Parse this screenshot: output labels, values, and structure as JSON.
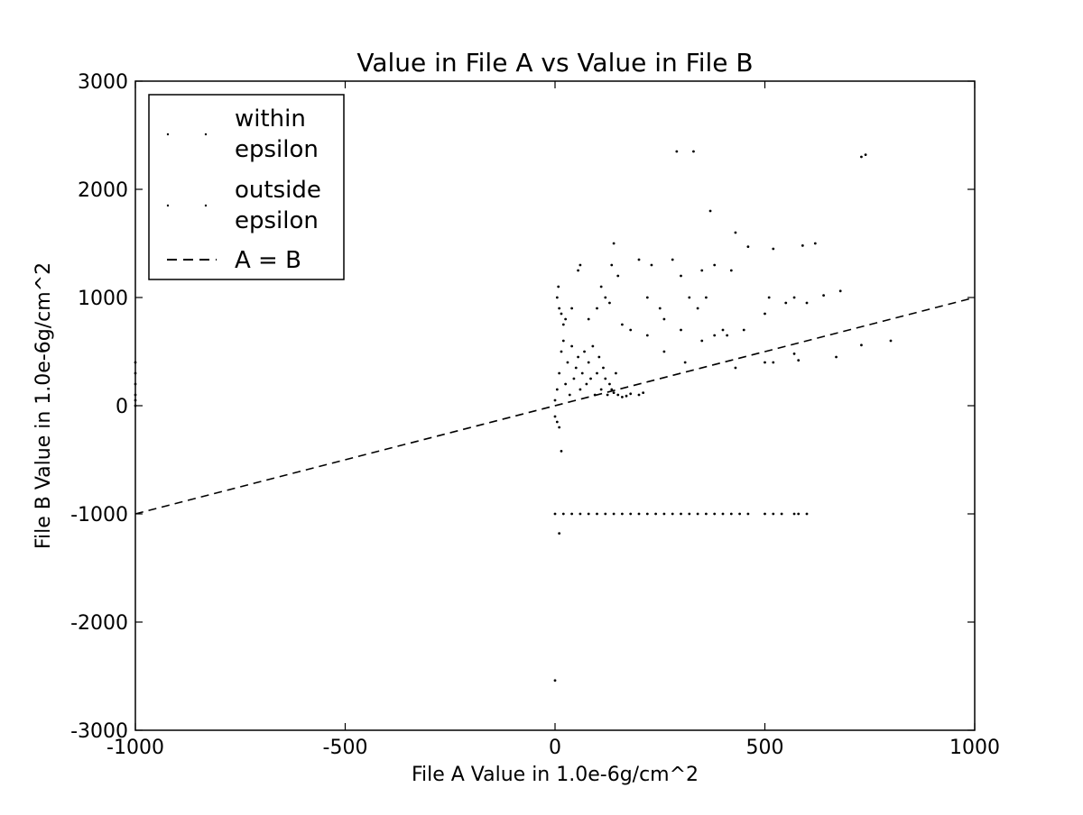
{
  "colors": {
    "marker": "#000000",
    "line": "#000000",
    "frame": "#000000",
    "background": "#ffffff"
  },
  "chart_data": {
    "type": "scatter",
    "title": "Value in File A vs Value in File B",
    "xlabel": "File A Value in 1.0e-6g/cm^2",
    "ylabel": "File B Value in 1.0e-6g/cm^2",
    "xlim": [
      -1000,
      1000
    ],
    "ylim": [
      -3000,
      3000
    ],
    "x_ticks": [
      -1000,
      -500,
      0,
      500,
      1000
    ],
    "y_ticks": [
      -3000,
      -2000,
      -1000,
      0,
      1000,
      2000,
      3000
    ],
    "grid": false,
    "legend_position": "top-left",
    "legend": [
      {
        "label_lines": [
          "within",
          "epsilon"
        ],
        "marker": "point"
      },
      {
        "label_lines": [
          "outside",
          "epsilon"
        ],
        "marker": "point"
      },
      {
        "label_lines": [
          "A = B"
        ],
        "marker": "dashed-line"
      }
    ],
    "reference_line": {
      "name": "A = B",
      "style": "dashed",
      "points": [
        [
          -1000,
          -1000
        ],
        [
          1000,
          1000
        ]
      ]
    },
    "series": [
      {
        "points": [
          [
            -1000,
            400
          ],
          [
            -1000,
            300
          ],
          [
            -1000,
            200
          ],
          [
            -1000,
            100
          ],
          [
            -1000,
            50
          ],
          [
            -1000,
            0
          ],
          [
            0,
            50
          ],
          [
            5,
            150
          ],
          [
            10,
            300
          ],
          [
            15,
            500
          ],
          [
            20,
            600
          ],
          [
            25,
            200
          ],
          [
            30,
            400
          ],
          [
            35,
            100
          ],
          [
            40,
            550
          ],
          [
            45,
            250
          ],
          [
            50,
            350
          ],
          [
            55,
            450
          ],
          [
            60,
            150
          ],
          [
            65,
            300
          ],
          [
            70,
            500
          ],
          [
            75,
            200
          ],
          [
            80,
            400
          ],
          [
            85,
            250
          ],
          [
            90,
            550
          ],
          [
            95,
            100
          ],
          [
            100,
            300
          ],
          [
            105,
            450
          ],
          [
            110,
            150
          ],
          [
            115,
            350
          ],
          [
            120,
            250
          ],
          [
            125,
            100
          ],
          [
            130,
            200
          ],
          [
            135,
            150
          ],
          [
            140,
            120
          ],
          [
            145,
            300
          ],
          [
            150,
            100
          ],
          [
            160,
            80
          ],
          [
            170,
            90
          ],
          [
            180,
            110
          ],
          [
            200,
            100
          ],
          [
            210,
            120
          ],
          [
            5,
            1000
          ],
          [
            8,
            1100
          ],
          [
            10,
            900
          ],
          [
            15,
            850
          ],
          [
            20,
            750
          ],
          [
            25,
            800
          ],
          [
            40,
            900
          ],
          [
            55,
            1250
          ],
          [
            60,
            1300
          ],
          [
            80,
            800
          ],
          [
            100,
            900
          ],
          [
            110,
            1100
          ],
          [
            120,
            1000
          ],
          [
            130,
            950
          ],
          [
            135,
            1300
          ],
          [
            140,
            1500
          ],
          [
            150,
            1200
          ],
          [
            160,
            750
          ],
          [
            180,
            700
          ],
          [
            200,
            1350
          ],
          [
            220,
            1000
          ],
          [
            230,
            1300
          ],
          [
            250,
            900
          ],
          [
            260,
            800
          ],
          [
            280,
            1350
          ],
          [
            290,
            2350
          ],
          [
            300,
            1200
          ],
          [
            320,
            1000
          ],
          [
            330,
            2350
          ],
          [
            340,
            900
          ],
          [
            350,
            1250
          ],
          [
            360,
            1000
          ],
          [
            370,
            1800
          ],
          [
            380,
            1300
          ],
          [
            400,
            700
          ],
          [
            420,
            1250
          ],
          [
            430,
            1600
          ],
          [
            460,
            1470
          ],
          [
            500,
            850
          ],
          [
            510,
            1000
          ],
          [
            520,
            1450
          ],
          [
            550,
            950
          ],
          [
            570,
            1000
          ],
          [
            590,
            1480
          ],
          [
            600,
            950
          ],
          [
            620,
            1500
          ],
          [
            640,
            1020
          ],
          [
            680,
            1060
          ],
          [
            730,
            2300
          ],
          [
            740,
            2320
          ],
          [
            220,
            650
          ],
          [
            260,
            500
          ],
          [
            300,
            700
          ],
          [
            310,
            400
          ],
          [
            350,
            600
          ],
          [
            380,
            650
          ],
          [
            410,
            650
          ],
          [
            430,
            350
          ],
          [
            450,
            700
          ],
          [
            500,
            400
          ],
          [
            520,
            400
          ],
          [
            570,
            480
          ],
          [
            580,
            420
          ],
          [
            670,
            450
          ],
          [
            730,
            560
          ],
          [
            800,
            600
          ],
          [
            0,
            -1000
          ],
          [
            20,
            -1000
          ],
          [
            40,
            -1000
          ],
          [
            60,
            -1000
          ],
          [
            80,
            -1000
          ],
          [
            100,
            -1000
          ],
          [
            120,
            -1000
          ],
          [
            140,
            -1000
          ],
          [
            160,
            -1000
          ],
          [
            180,
            -1000
          ],
          [
            200,
            -1000
          ],
          [
            220,
            -1000
          ],
          [
            240,
            -1000
          ],
          [
            260,
            -1000
          ],
          [
            280,
            -1000
          ],
          [
            300,
            -1000
          ],
          [
            320,
            -1000
          ],
          [
            340,
            -1000
          ],
          [
            360,
            -1000
          ],
          [
            380,
            -1000
          ],
          [
            400,
            -1000
          ],
          [
            420,
            -1000
          ],
          [
            440,
            -1000
          ],
          [
            460,
            -1000
          ],
          [
            500,
            -1000
          ],
          [
            520,
            -1000
          ],
          [
            540,
            -1000
          ],
          [
            570,
            -1000
          ],
          [
            580,
            -1000
          ],
          [
            600,
            -1000
          ],
          [
            0,
            -100
          ],
          [
            5,
            -150
          ],
          [
            10,
            -200
          ],
          [
            15,
            -420
          ],
          [
            10,
            -1180
          ],
          [
            0,
            -2540
          ]
        ]
      }
    ]
  }
}
